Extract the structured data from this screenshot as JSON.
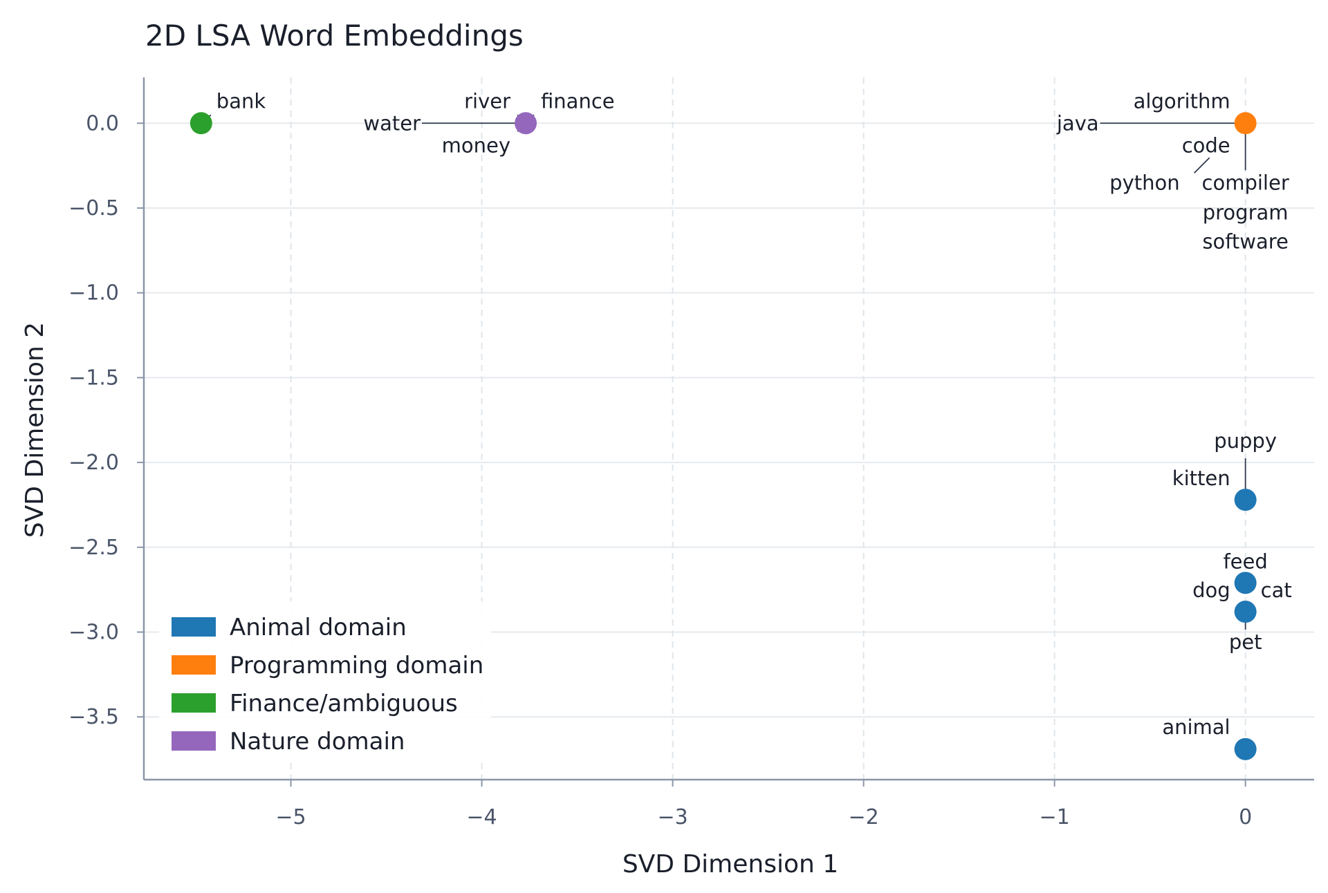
{
  "chart_data": {
    "type": "scatter",
    "title": "2D LSA Word Embeddings",
    "xlabel": "SVD Dimension 1",
    "ylabel": "SVD Dimension 2",
    "xlim": [
      -5.77,
      0.36
    ],
    "ylim": [
      -3.87,
      0.27
    ],
    "xticks": [
      -5,
      -4,
      -3,
      -2,
      -1,
      0
    ],
    "yticks": [
      0.0,
      -0.5,
      -1.0,
      -1.5,
      -2.0,
      -2.5,
      -3.0,
      -3.5
    ],
    "xtick_labels": [
      "−5",
      "−4",
      "−3",
      "−2",
      "−1",
      "0"
    ],
    "ytick_labels": [
      "0.0",
      "−0.5",
      "−1.0",
      "−1.5",
      "−2.0",
      "−2.5",
      "−3.0",
      "−3.5"
    ],
    "grid": "dashed vertical, solid horizontal",
    "legend_position": "bottom-left",
    "series": [
      {
        "name": "Animal domain",
        "color": "#1f77b4",
        "points": [
          {
            "word": "kitten",
            "x": 0.0,
            "y": -2.22
          },
          {
            "word": "puppy",
            "x": 0.0,
            "y": -2.22
          },
          {
            "word": "feed",
            "x": 0.0,
            "y": -2.71
          },
          {
            "word": "dog",
            "x": 0.0,
            "y": -2.88
          },
          {
            "word": "cat",
            "x": 0.0,
            "y": -2.88
          },
          {
            "word": "pet",
            "x": 0.0,
            "y": -2.88
          },
          {
            "word": "animal",
            "x": 0.0,
            "y": -3.69
          }
        ]
      },
      {
        "name": "Programming domain",
        "color": "#ff7f0e",
        "points": [
          {
            "word": "algorithm",
            "x": 0.0,
            "y": 0.0
          },
          {
            "word": "java",
            "x": 0.0,
            "y": 0.0
          },
          {
            "word": "code",
            "x": 0.0,
            "y": 0.0
          },
          {
            "word": "python",
            "x": 0.0,
            "y": 0.0
          },
          {
            "word": "compiler",
            "x": 0.0,
            "y": 0.0
          },
          {
            "word": "program",
            "x": 0.0,
            "y": 0.0
          },
          {
            "word": "software",
            "x": 0.0,
            "y": 0.0
          }
        ]
      },
      {
        "name": "Finance/ambiguous",
        "color": "#2ca02c",
        "points": [
          {
            "word": "bank",
            "x": -5.47,
            "y": 0.0
          }
        ]
      },
      {
        "name": "Nature domain",
        "color": "#9467bd",
        "points": [
          {
            "word": "river",
            "x": -3.77,
            "y": 0.0
          },
          {
            "word": "finance",
            "x": -3.77,
            "y": 0.0
          },
          {
            "word": "water",
            "x": -3.77,
            "y": 0.0
          },
          {
            "word": "money",
            "x": -3.77,
            "y": 0.0
          }
        ]
      }
    ]
  }
}
